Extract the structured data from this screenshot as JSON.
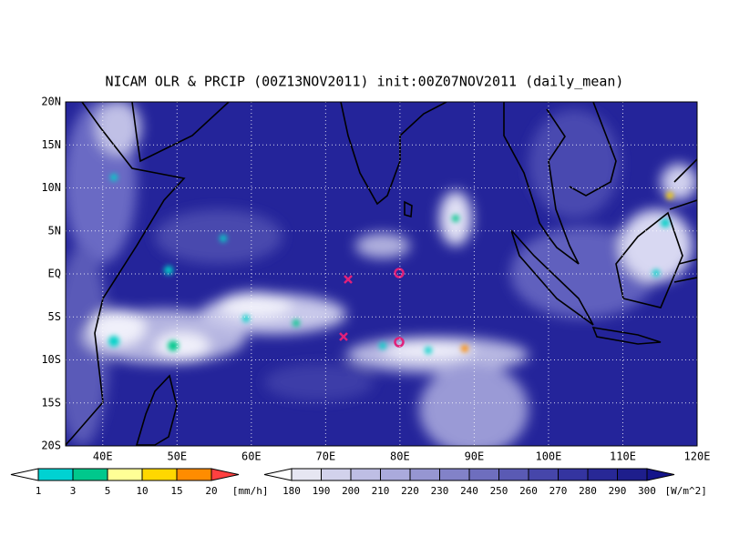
{
  "title": "NICAM OLR & PRCIP (00Z13NOV2011) init:00Z07NOV2011 (daily_mean)",
  "lat_labels": [
    "20N",
    "15N",
    "10N",
    "5N",
    "EQ",
    "5S",
    "10S",
    "15S",
    "20S"
  ],
  "lon_labels": [
    "40E",
    "50E",
    "60E",
    "70E",
    "80E",
    "90E",
    "100E",
    "110E",
    "120E"
  ],
  "precip_legend": {
    "labels": [
      "1",
      "3",
      "5",
      "10",
      "15",
      "20"
    ],
    "unit": "[mm/h]",
    "colors": [
      "#ffffff",
      "#00d2d2",
      "#00c88c",
      "#ffff96",
      "#ffd700",
      "#ff8c00",
      "#ff4040"
    ]
  },
  "olr_legend": {
    "labels": [
      "180",
      "190",
      "200",
      "210",
      "220",
      "230",
      "240",
      "250",
      "260",
      "270",
      "280",
      "290",
      "300"
    ],
    "unit": "[W/m^2]",
    "colors": [
      "#ffffff",
      "#e6e6f2",
      "#d2d2ec",
      "#bebee4",
      "#aaaadc",
      "#9696d2",
      "#8282c8",
      "#6e6ebe",
      "#5a5ab4",
      "#4646aa",
      "#3434a0",
      "#282896",
      "#1e1e8c",
      "#14148a"
    ]
  }
}
